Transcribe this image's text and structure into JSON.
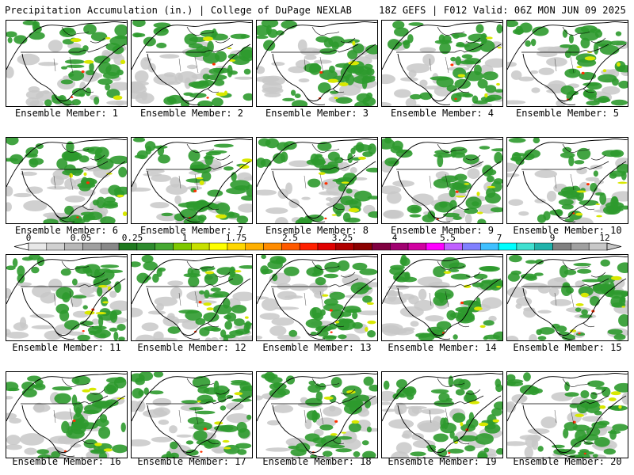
{
  "header": {
    "title": "Precipitation Accumulation (in.) | College of DuPage NEXLAB",
    "valid": "18Z GEFS | F012 Valid: 06Z MON JUN 09 2025"
  },
  "panels": [
    {
      "label": "Ensemble Member: 1"
    },
    {
      "label": "Ensemble Member: 2"
    },
    {
      "label": "Ensemble Member: 3"
    },
    {
      "label": "Ensemble Member: 4"
    },
    {
      "label": "Ensemble Member: 5"
    },
    {
      "label": "Ensemble Member: 6"
    },
    {
      "label": "Ensemble Member: 7"
    },
    {
      "label": "Ensemble Member: 8"
    },
    {
      "label": "Ensemble Member: 9"
    },
    {
      "label": "Ensemble Member: 10"
    },
    {
      "label": "Ensemble Member: 11"
    },
    {
      "label": "Ensemble Member: 12"
    },
    {
      "label": "Ensemble Member: 13"
    },
    {
      "label": "Ensemble Member: 14"
    },
    {
      "label": "Ensemble Member: 15"
    },
    {
      "label": "Ensemble Member: 16"
    },
    {
      "label": "Ensemble Member: 17"
    },
    {
      "label": "Ensemble Member: 18"
    },
    {
      "label": "Ensemble Member: 19"
    },
    {
      "label": "Ensemble Member: 20"
    }
  ],
  "colorbar": {
    "tick_labels": [
      "0",
      "0.05",
      "0.25",
      "1",
      "1.75",
      "2.5",
      "3.25",
      "4",
      "5.5",
      "7",
      "9",
      "12"
    ],
    "colors": [
      "#e8e8e8",
      "#d0d0d0",
      "#b8b8b8",
      "#a0a0a0",
      "#888888",
      "#1f7a1f",
      "#2e8b2e",
      "#46a832",
      "#7ec800",
      "#c8e000",
      "#ffff00",
      "#ffd700",
      "#ffb000",
      "#ff8c00",
      "#ff5a00",
      "#ff2000",
      "#e00000",
      "#b00000",
      "#8b0000",
      "#800040",
      "#a00070",
      "#d000a0",
      "#ff00ff",
      "#c060ff",
      "#8080ff",
      "#40c0ff",
      "#00ffff",
      "#40e0d0",
      "#20b2aa",
      "#808080",
      "#a0a0a0",
      "#c8c8c8"
    ]
  },
  "map_colors": {
    "light_precip": "#c8c8c8",
    "green_precip": "#2e9a2e",
    "yellow_precip": "#d8e800",
    "heavy_precip": "#ff3000"
  }
}
